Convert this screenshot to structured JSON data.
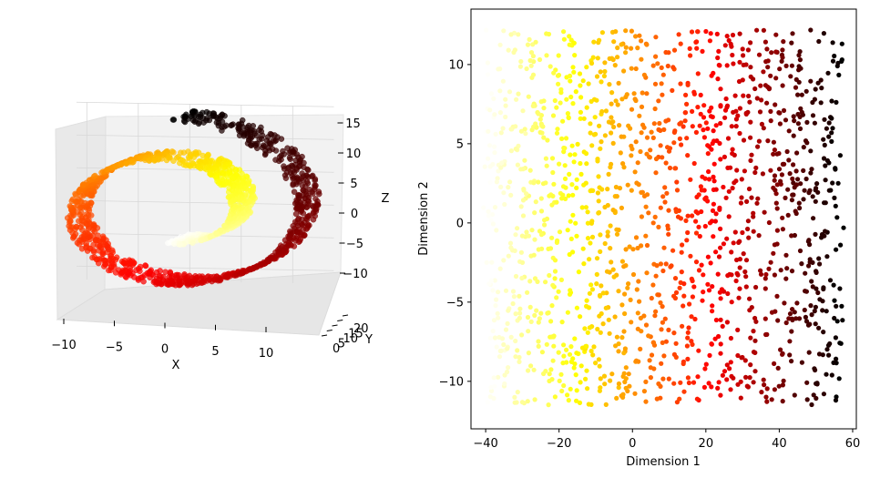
{
  "chart_data": [
    {
      "type": "scatter",
      "projection": "3d",
      "colormap": "hot",
      "title": "",
      "xlabel": "X",
      "ylabel": "Y",
      "zlabel": "Z",
      "xlim": [
        -11,
        14
      ],
      "ylim": [
        0,
        21
      ],
      "zlim": [
        -12,
        15
      ],
      "x_ticks": [
        -10,
        -5,
        0,
        5,
        10
      ],
      "y_ticks": [
        0,
        5,
        10,
        15,
        20
      ],
      "z_ticks": [
        -10,
        -5,
        0,
        5,
        10,
        15
      ],
      "grid": true,
      "point_count": 1500,
      "shape": "swiss roll",
      "t_range": [
        4.7,
        14.1
      ],
      "height_range": [
        0,
        21
      ]
    },
    {
      "type": "scatter",
      "colormap": "hot",
      "title": "",
      "xlabel": "Dimension 1",
      "ylabel": "Dimension 2",
      "xlim": [
        -44,
        61
      ],
      "ylim": [
        -13,
        13.5
      ],
      "x_ticks": [
        -40,
        -20,
        0,
        20,
        40,
        60
      ],
      "y_ticks": [
        -10,
        -5,
        0,
        5,
        10
      ],
      "grid": false,
      "point_count": 1500,
      "x_range": [
        -40,
        57
      ],
      "y_range": [
        -11.5,
        12.2
      ],
      "color_by": "Dimension 1"
    }
  ]
}
